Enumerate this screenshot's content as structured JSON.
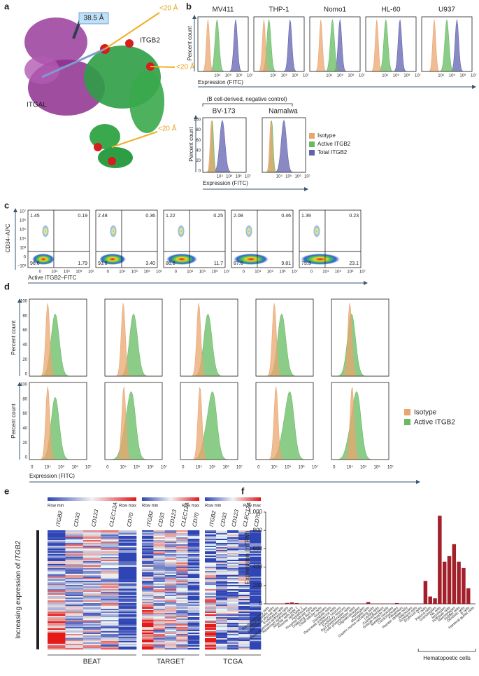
{
  "panel_labels": [
    "a",
    "b",
    "c",
    "d",
    "e",
    "f"
  ],
  "panel_a": {
    "distance": "38.5 Å",
    "short_distances": [
      "<20 Å",
      "<20 Å",
      "<20 Å"
    ],
    "proteins": [
      "ITGB2",
      "ITGAL"
    ]
  },
  "panel_b": {
    "cell_lines": [
      "MV411",
      "THP-1",
      "Nomo1",
      "HL-60",
      "U937"
    ],
    "control_note": "(B cell-derived, negative control)",
    "control_lines": [
      "BV-173",
      "Namalwa"
    ],
    "y_label": "Percent count",
    "x_label": "Expression (FITC)",
    "yticks": [
      100,
      80,
      60,
      40,
      20,
      0
    ],
    "xticks": [
      "10⁴",
      "10⁵",
      "10⁶",
      "10⁷"
    ],
    "legend": [
      {
        "name": "Isotype",
        "color": "#e9a56f"
      },
      {
        "name": "Active ITGB2",
        "color": "#66bb62"
      },
      {
        "name": "Total ITGB2",
        "color": "#6262b0"
      }
    ]
  },
  "panel_c": {
    "y_label": "CD34–APC",
    "x_label": "Active ITGB2–FITC",
    "yticks": [
      "10⁷",
      "10⁶",
      "10⁵",
      "10⁴",
      "10³",
      "0",
      "−10³"
    ],
    "xticks": [
      "0",
      "10⁴",
      "10⁵",
      "10⁶",
      "10⁷"
    ],
    "quadrants": [
      [
        "1.45",
        "0.19",
        "96.6",
        "1.79"
      ],
      [
        "2.48",
        "0.36",
        "93.8",
        "3.40"
      ],
      [
        "1.22",
        "0.25",
        "86.8",
        "11.7"
      ],
      [
        "2.08",
        "0.46",
        "87.6",
        "9.81"
      ],
      [
        "1.39",
        "0.23",
        "75.3",
        "23.1"
      ]
    ]
  },
  "panel_d": {
    "y_label": "Percent count",
    "x_label": "Expression (FITC)",
    "yticks": [
      100,
      80,
      60,
      40,
      20,
      0
    ],
    "xticks": [
      "0",
      "10⁴",
      "10⁵",
      "10⁶",
      "10⁷"
    ],
    "legend": [
      {
        "name": "Isotype",
        "color": "#e9a56f"
      },
      {
        "name": "Active ITGB2",
        "color": "#66bb62"
      }
    ]
  },
  "panel_e": {
    "scale_labels": [
      "Row min",
      "Row max"
    ],
    "genes": [
      "ITGB2",
      "CD33",
      "CD123",
      "CLEC12A",
      "CD70"
    ],
    "y_label": "Increasing expression of ",
    "y_label_gene": "ITGB2",
    "cohorts": [
      "BEAT",
      "TARGET",
      "TCGA"
    ]
  },
  "chart_data": {
    "type": "bar",
    "y_label": "Expression (nTPM)",
    "color": "#a31f2a",
    "group_label": "Hematopoetic cells",
    "categories": [
      "Basal respiratory cells",
      "Basal prostatic cells",
      "Endometrial stromal cells",
      "Endothelial cells",
      "Basal squamous epithelial cells",
      "Squamous epithelial cells",
      "Alveolar cells type 1",
      "Alveolar cells type 2",
      "Hepatocytes",
      "Proximal tubular cells",
      "Collecting duct cells",
      "Distal tubular cells",
      "Ionocytes",
      "Glandular cells",
      "Pancreatic endocrine cells",
      "Inhibitory neurons",
      "Excitatory neurons",
      "Rod photoreceptor cells",
      "Cone photoreceptor cells",
      "Oligodendrocytes",
      "Astrocytes",
      "Microglial cells",
      "Gastric mucus-secreting cells",
      "Leydig cells",
      "Cytotrophoblasts",
      "Smooth muscle cells",
      "Skeletal myocytes",
      "Cardiomyocytes",
      "Fibroblasts",
      "Hepatic stellate cells",
      "Adipocytes",
      "Schwann cells",
      "Erythroid cells",
      "T cells",
      "Plasma cells",
      "Granulocytes",
      "NK cells",
      "Monocytes",
      "Hofbauer cells",
      "Macrophages",
      "Kupffer cells",
      "Dendritic cells",
      "B cells",
      "Intestinal goblet cells"
    ],
    "values": [
      3,
      2,
      2,
      3,
      10,
      15,
      8,
      3,
      2,
      2,
      2,
      3,
      2,
      2,
      2,
      1,
      1,
      1,
      1,
      2,
      3,
      20,
      2,
      2,
      3,
      2,
      2,
      8,
      2,
      2,
      2,
      2,
      0,
      250,
      80,
      60,
      960,
      460,
      520,
      650,
      460,
      390,
      170,
      0
    ],
    "ylim": [
      0,
      1000
    ],
    "yticks": [
      0,
      200,
      400,
      600,
      800,
      {
        "value": 1000,
        "label": "1,000"
      }
    ]
  }
}
